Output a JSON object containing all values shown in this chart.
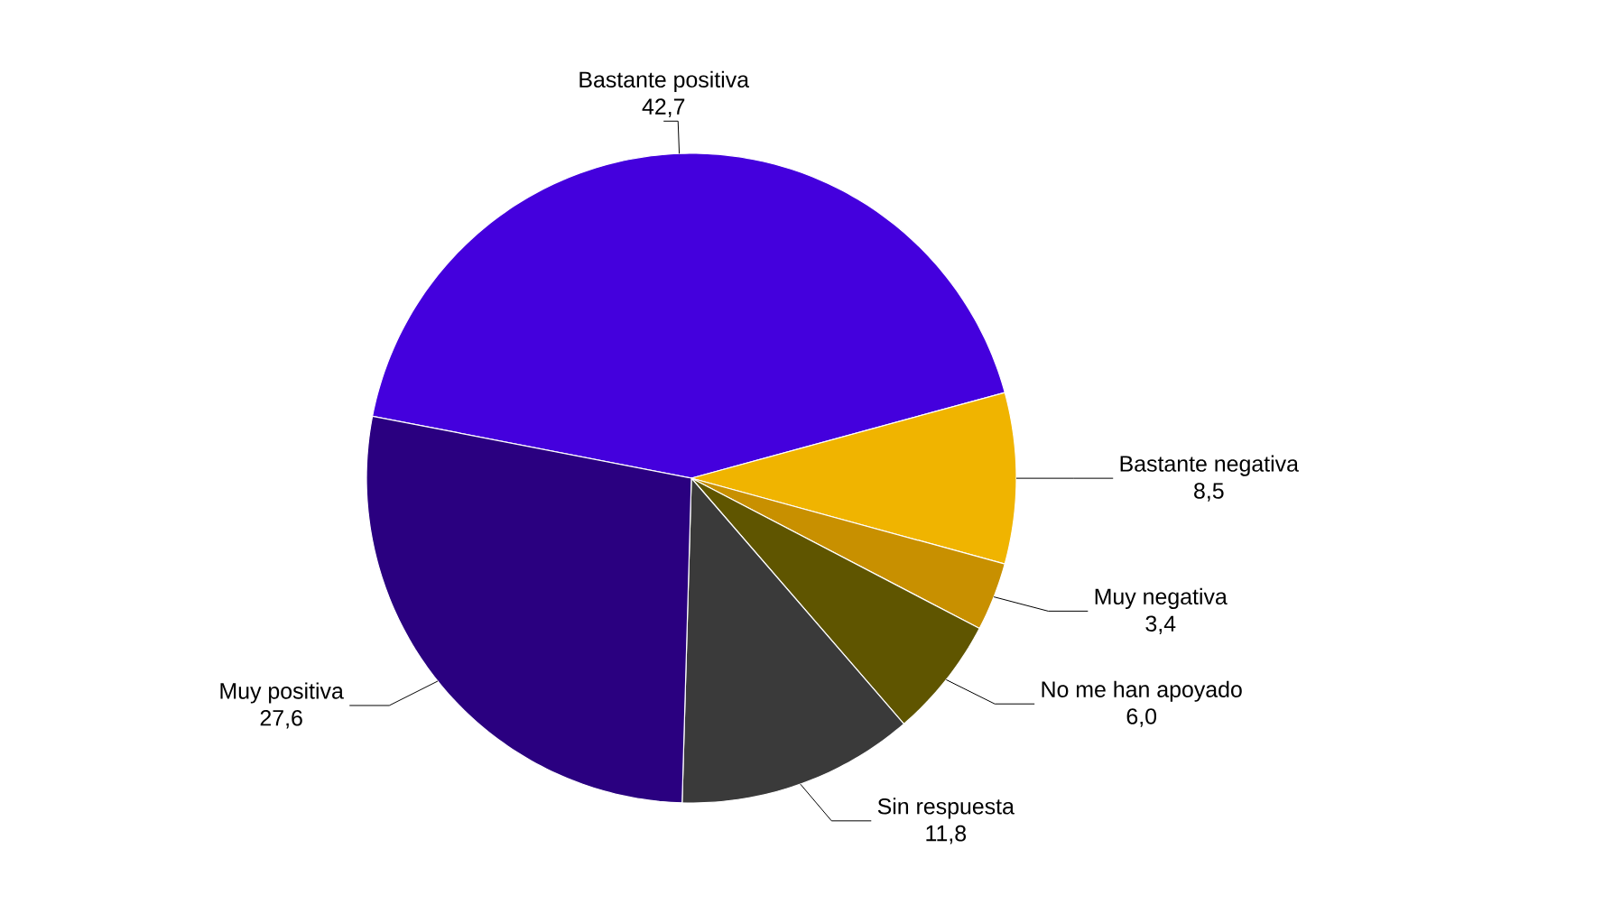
{
  "chart_data": {
    "type": "pie",
    "categories": [
      "Bastante positiva",
      "Bastante negativa",
      "Muy negativa",
      "No me han apoyado",
      "Sin respuesta",
      "Muy positiva"
    ],
    "values": [
      42.7,
      8.5,
      3.4,
      6.0,
      11.8,
      27.6
    ],
    "colors": [
      "#4400dd",
      "#f0b400",
      "#c89000",
      "#5f5500",
      "#3a3a3a",
      "#2a0080"
    ],
    "value_labels": [
      "42,7",
      "8,5",
      "3,4",
      "6,0",
      "11,8",
      "27,6"
    ]
  }
}
